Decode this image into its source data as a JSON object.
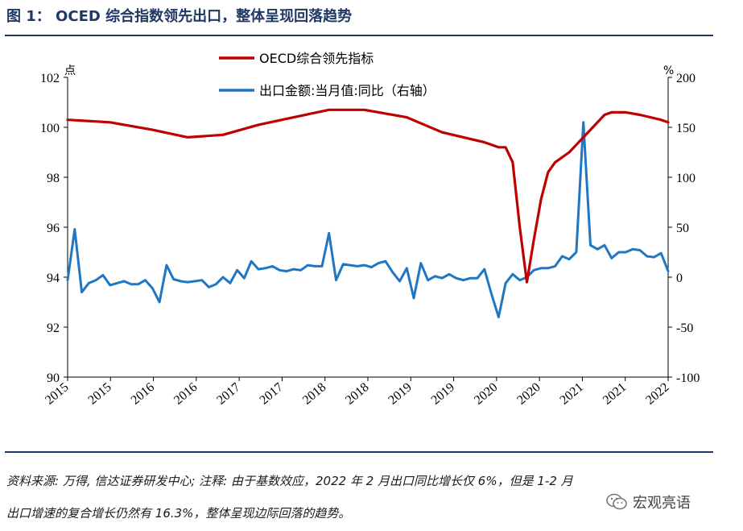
{
  "figure": {
    "title": "图 1： OCED 综合指数领先出口，整体呈现回落趋势"
  },
  "footnote": {
    "line1": "资料来源: 万得, 信达证券研发中心; 注释: 由于基数效应，2022 年 2 月出口同比增长仅 6%，但是 1-2 月",
    "line2": "出口增速的复合增长仍然有 16.3%，整体呈现边际回落的趋势。"
  },
  "watermark": {
    "text": "宏观亮语",
    "icon": "wechat-icon"
  },
  "chart_data": {
    "type": "line",
    "legend_position": "top-center",
    "grid": false,
    "left_axis": {
      "unit": "点",
      "ylim": [
        90,
        102
      ],
      "ticks": [
        90,
        92,
        94,
        96,
        98,
        100,
        102
      ]
    },
    "right_axis": {
      "unit": "%",
      "ylim": [
        -100,
        200
      ],
      "ticks": [
        -100,
        -50,
        0,
        50,
        100,
        150,
        200
      ]
    },
    "x_ticks": [
      "2015",
      "2015",
      "2016",
      "2016",
      "2017",
      "2017",
      "2018",
      "2018",
      "2019",
      "2019",
      "2020",
      "2020",
      "2021",
      "2021",
      "2022"
    ],
    "x_range": [
      "2015-01",
      "2022-02"
    ],
    "series": [
      {
        "name": "OECD综合领先指标",
        "axis": "left",
        "color": "#c00000",
        "x": [
          "2015-01",
          "2015-07",
          "2016-01",
          "2016-06",
          "2016-11",
          "2017-04",
          "2017-09",
          "2018-02",
          "2018-07",
          "2019-01",
          "2019-06",
          "2019-12",
          "2020-02",
          "2020-03",
          "2020-04",
          "2020-05",
          "2020-06",
          "2020-07",
          "2020-08",
          "2020-09",
          "2020-10",
          "2020-11",
          "2020-12",
          "2021-01",
          "2021-02",
          "2021-03",
          "2021-04",
          "2021-05",
          "2021-06",
          "2021-08",
          "2021-10",
          "2022-01",
          "2022-02"
        ],
        "values": [
          100.3,
          100.2,
          99.9,
          99.6,
          99.7,
          100.1,
          100.4,
          100.7,
          100.7,
          100.4,
          99.8,
          99.4,
          99.2,
          99.2,
          98.6,
          96.0,
          93.8,
          95.5,
          97.1,
          98.2,
          98.6,
          98.8,
          99.0,
          99.3,
          99.6,
          99.9,
          100.2,
          100.5,
          100.6,
          100.6,
          100.5,
          100.3,
          100.2
        ]
      },
      {
        "name": "出口金额:当月值:同比（右轴）",
        "axis": "right",
        "color": "#1f77c4",
        "x": [
          "2015-01",
          "2015-02",
          "2015-03",
          "2015-04",
          "2015-05",
          "2015-06",
          "2015-07",
          "2015-08",
          "2015-09",
          "2015-10",
          "2015-11",
          "2015-12",
          "2016-01",
          "2016-02",
          "2016-03",
          "2016-04",
          "2016-05",
          "2016-06",
          "2016-07",
          "2016-08",
          "2016-09",
          "2016-10",
          "2016-11",
          "2016-12",
          "2017-01",
          "2017-02",
          "2017-03",
          "2017-04",
          "2017-05",
          "2017-06",
          "2017-07",
          "2017-08",
          "2017-09",
          "2017-10",
          "2017-11",
          "2017-12",
          "2018-01",
          "2018-02",
          "2018-03",
          "2018-04",
          "2018-05",
          "2018-06",
          "2018-07",
          "2018-08",
          "2018-09",
          "2018-10",
          "2018-11",
          "2018-12",
          "2019-01",
          "2019-02",
          "2019-03",
          "2019-04",
          "2019-05",
          "2019-06",
          "2019-07",
          "2019-08",
          "2019-09",
          "2019-10",
          "2019-11",
          "2019-12",
          "2020-01",
          "2020-02",
          "2020-03",
          "2020-04",
          "2020-05",
          "2020-06",
          "2020-07",
          "2020-08",
          "2020-09",
          "2020-10",
          "2020-11",
          "2020-12",
          "2021-01",
          "2021-02",
          "2021-03",
          "2021-04",
          "2021-05",
          "2021-06",
          "2021-07",
          "2021-08",
          "2021-09",
          "2021-10",
          "2021-11",
          "2021-12",
          "2022-01",
          "2022-02"
        ],
        "values": [
          -3,
          48,
          -15,
          -6,
          -3,
          2,
          -8,
          -6,
          -4,
          -7,
          -7,
          -3,
          -11,
          -25,
          12,
          -2,
          -4,
          -5,
          -4,
          -3,
          -10,
          -7,
          0,
          -6,
          7,
          -1,
          16,
          8,
          9,
          11,
          7,
          6,
          8,
          7,
          12,
          11,
          11,
          44,
          -3,
          13,
          12,
          11,
          12,
          10,
          14,
          16,
          5,
          -4,
          9,
          -21,
          14,
          -3,
          1,
          -1,
          3,
          -1,
          -3,
          -1,
          -1,
          8,
          -17,
          -40,
          -6,
          3,
          -3,
          0,
          7,
          9,
          9,
          11,
          21,
          18,
          25,
          155,
          32,
          28,
          32,
          19,
          25,
          25,
          28,
          27,
          21,
          20,
          24,
          6
        ]
      }
    ]
  }
}
